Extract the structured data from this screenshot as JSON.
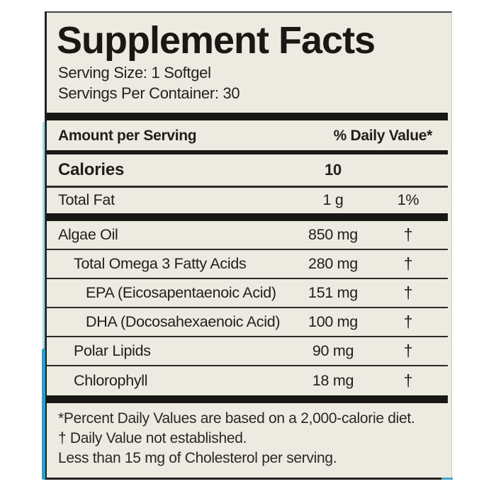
{
  "label": {
    "title": "Supplement Facts",
    "serving_size": "Serving Size: 1 Softgel",
    "servings_per_container": "Servings Per Container: 30",
    "header": {
      "amount_label": "Amount per Serving",
      "dv_label": "% Daily Value*"
    },
    "calories": {
      "name": "Calories",
      "amount": "10"
    },
    "total_fat": {
      "name": "Total Fat",
      "amount": "1 g",
      "dv": "1%"
    },
    "ingredients": [
      {
        "name": "Algae Oil",
        "amount": "850 mg",
        "dv": "†"
      },
      {
        "name": "Total Omega 3 Fatty Acids",
        "amount": "280 mg",
        "dv": "†"
      },
      {
        "name": "EPA (Eicosapentaenoic Acid)",
        "amount": "151 mg",
        "dv": "†"
      },
      {
        "name": "DHA (Docosahexaenoic Acid)",
        "amount": "100 mg",
        "dv": "†"
      },
      {
        "name": "Polar Lipids",
        "amount": "90 mg",
        "dv": "†"
      },
      {
        "name": "Chlorophyll",
        "amount": "18 mg",
        "dv": "†"
      }
    ],
    "footnotes": [
      "*Percent Daily Values are based on a 2,000-calorie diet.",
      "† Daily Value not established.",
      "Less than 15 mg of Cholesterol per serving."
    ],
    "colors": {
      "label_background": "#EDEAE1",
      "text": "#201E1A",
      "rule_bars": "#171714",
      "package_edge_accent": "#2F9FC6"
    }
  }
}
